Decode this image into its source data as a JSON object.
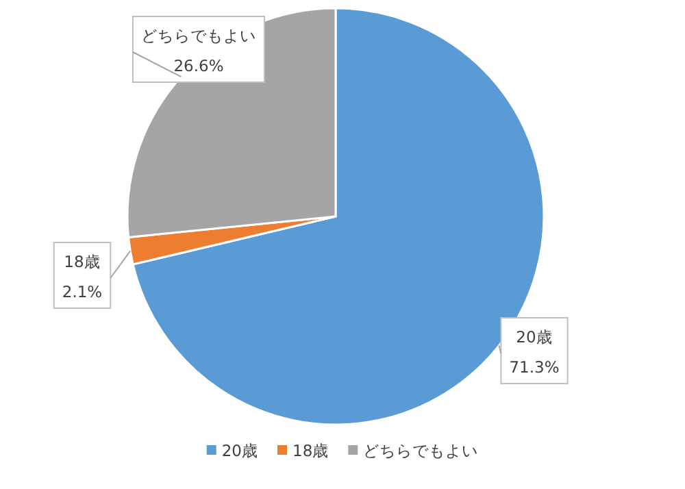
{
  "chart_data": {
    "type": "pie",
    "categories": [
      "20歳",
      "18歳",
      "どちらでもよい"
    ],
    "values": [
      71.3,
      2.1,
      26.6
    ],
    "colors": [
      "#5b9bd5",
      "#ed7d31",
      "#a5a5a5"
    ],
    "value_labels": [
      "71.3%",
      "2.1%",
      "26.6%"
    ],
    "legend": "bottom"
  }
}
